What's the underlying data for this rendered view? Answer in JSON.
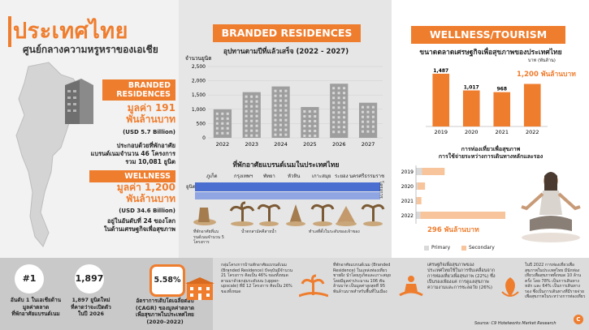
{
  "left": {
    "title": "ประเทศไทย",
    "subtitle": "ศูนย์กลางความหรูหราของเอเชีย",
    "branded": {
      "tag": "BRANDED\nRESIDENCES",
      "value": "มูลค่า 191\nพันล้านบาท",
      "usd": "(USD 5.7 Billion)",
      "desc": "ประกอบด้วยที่พักอาศัย\nแบรนด์เนมจำนวน 46 โครงการ\nรวม 10,081 ยูนิต"
    },
    "wellness": {
      "tag": "WELLNESS",
      "value": "มูลค่า 1,200\nพันล้านบาท",
      "usd": "(USD 34.6 Billion)",
      "desc": "อยู่ในอันดับที่ 24 ของโลก\nในด้านเศรษฐกิจเพื่อสุขภาพ"
    }
  },
  "middle": {
    "section_title": "BRANDED RESIDENCES",
    "chart_title": "อุปทานตามปีที่แล้วเสร็จ (2022 - 2027)",
    "location_title": "ที่พักอาศัยแบรนด์เนมในประเทศไทย",
    "locations": [
      "ภูเก็ต",
      "กรุงเทพฯ",
      "พัทยา",
      "หัวหิน",
      "เกาะสมุย",
      "ระยอง",
      "นครศรีธรรมราช"
    ],
    "axis_units": "ยูนิต",
    "axis_projects": "โครงการ",
    "icon_notes": [
      "น้ำตกใหญ่ในประเทศไทยที่สูงที่สุด",
      "น้ำตกสามัคคีสายน้ำ",
      "ทำเลที่ตั้งในระดับของเจ้าของ",
      "ที่พักที่มีในระดับของพลังงาน"
    ],
    "note_a": "ที่พักอาศัยที่แบรนด์เนมจำนวน 5 โครงการ",
    "note_b": "น้ำตกสามัคคีสายน้ำ",
    "note_c": "ทำเลที่ตั้งในระดับของเจ้าของ"
  },
  "right": {
    "section_title": "WELLNESS/TOURISM",
    "chart_title": "ขนาดตลาดเศรษฐกิจเพื่อสุขภาพของประเทศไทย",
    "unit_note": "บาท (พันล้าน)",
    "highlight": "1,200 พันล้านบาท",
    "chart2_title": "การท่องเที่ยวเพื่อสุขภาพ\nการใช้จ่ายระหว่างการเดินทางหลักและรอง",
    "highlight2": "296 พันล้านบาท",
    "legend_primary": "Primary",
    "legend_secondary": "Secondary",
    "source": "Source: C9 Hotelworks Market Research"
  },
  "footer": {
    "stat1_value": "#1",
    "stat1_text": "อันดับ 1 ในเอเชียด้าน\nมูลค่าตลาด\nที่พักอาศัยแบรนด์เนม",
    "stat2_value": "1,897",
    "stat2_text": "1,897 ยูนิตใหม่\nที่คาดว่าจะเปิดตัว\nในปี 2026",
    "stat3_value": "5.58%",
    "stat3_text": "อัตราการเติบโตเฉลี่ยต่อปี\n(CAGR) ของมูลค่าตลาด\nเพื่อสุขภาพในประเทศไทย\n(2020–2022)",
    "box1": "กลุ่มโครงการบ้านพักอาศัยแบรนด์เนม (Branded Residence) ปัจจุบันมีจำนวน 21 โครงการ คิดเป็น 46% ของทั้งหมด ตามมาด้วยกลุ่มระดับบน (upper-upscale) ที่มี 12 โครงการ คิดเป็น 26% ของทั้งหมด",
    "box2": "ที่พักอาศัยแบรนด์เนม (Branded Residence) ในแหล่งท่องเที่ยวชายฝั่ง นำโดยภูเก็ตและเกาะสมุย โดยมีมูลค่าประมาณ 106 พันล้านบาท เป็นมูลค่าสูงสุดที่ 95 พันล้านบาทสำหรับพื้นที่ในเมือง",
    "box3": "เศรษฐกิจเพื่อสุขภาพของประเทศไทยใช้ในการขับเคลื่อนจาก การท่องเที่ยวเพื่อสุขภาพ (22%) ซึ่งเป็นรองเพียงแค่ การดูแลสุขภาพความงามและการชะลอวัย (26%)",
    "box4": "ในปี 2022 การท่องเที่ยวเพื่อสุขภาพในประเทศไทย มีนักท่องเที่ยวเพื่อสุขภาพทั้งหมด 10 ล้านครั้ง โดย 78% เป็นการเดินทางหลัก และ 64% เป็นการเดินทางรอง ซึ่งเป็นการเดินทางที่มีรายจ่ายเพื่อสุขภาพในระหว่างการท่องเที่ยว"
  },
  "chart_data": [
    {
      "type": "bar",
      "title": "อุปทานตามปีที่แล้วเสร็จ (2022 - 2027)",
      "ylabel": "จำนวนยูนิต",
      "categories": [
        "2022",
        "2023",
        "2024",
        "2025",
        "2026",
        "2027"
      ],
      "values": [
        1000,
        1600,
        1800,
        1080,
        1897,
        1230
      ],
      "ylim": [
        0,
        2500
      ],
      "yticks": [
        "0",
        "500",
        "1,000",
        "1,500",
        "2,000",
        "2,500"
      ]
    },
    {
      "type": "bar",
      "title": "ขนาดตลาดเศรษฐกิจเพื่อสุขภาพของประเทศไทย",
      "ylabel": "บาท (พันล้าน)",
      "categories": [
        "2019",
        "2020",
        "2021",
        "2022"
      ],
      "values": [
        1487,
        1017,
        968,
        1200
      ],
      "labels": [
        "1,487",
        "1,017",
        "968",
        ""
      ],
      "ylim": [
        0,
        1600
      ]
    },
    {
      "type": "bar",
      "orientation": "horizontal",
      "title": "การท่องเที่ยวเพื่อสุขภาพ การใช้จ่ายระหว่างการเดินทางหลักและรอง",
      "categories": [
        "2019",
        "2020",
        "2021",
        "2022"
      ],
      "series": [
        {
          "name": "Primary",
          "values": [
            20,
            5,
            3,
            15
          ]
        },
        {
          "name": "Secondary",
          "values": [
            75,
            25,
            15,
            281
          ]
        }
      ]
    }
  ],
  "colors": {
    "accent": "#ef7d2e",
    "accent_light": "#f7c49b",
    "bar_gray": "#9e9e9e",
    "blue_band": "#4a6fd1"
  }
}
